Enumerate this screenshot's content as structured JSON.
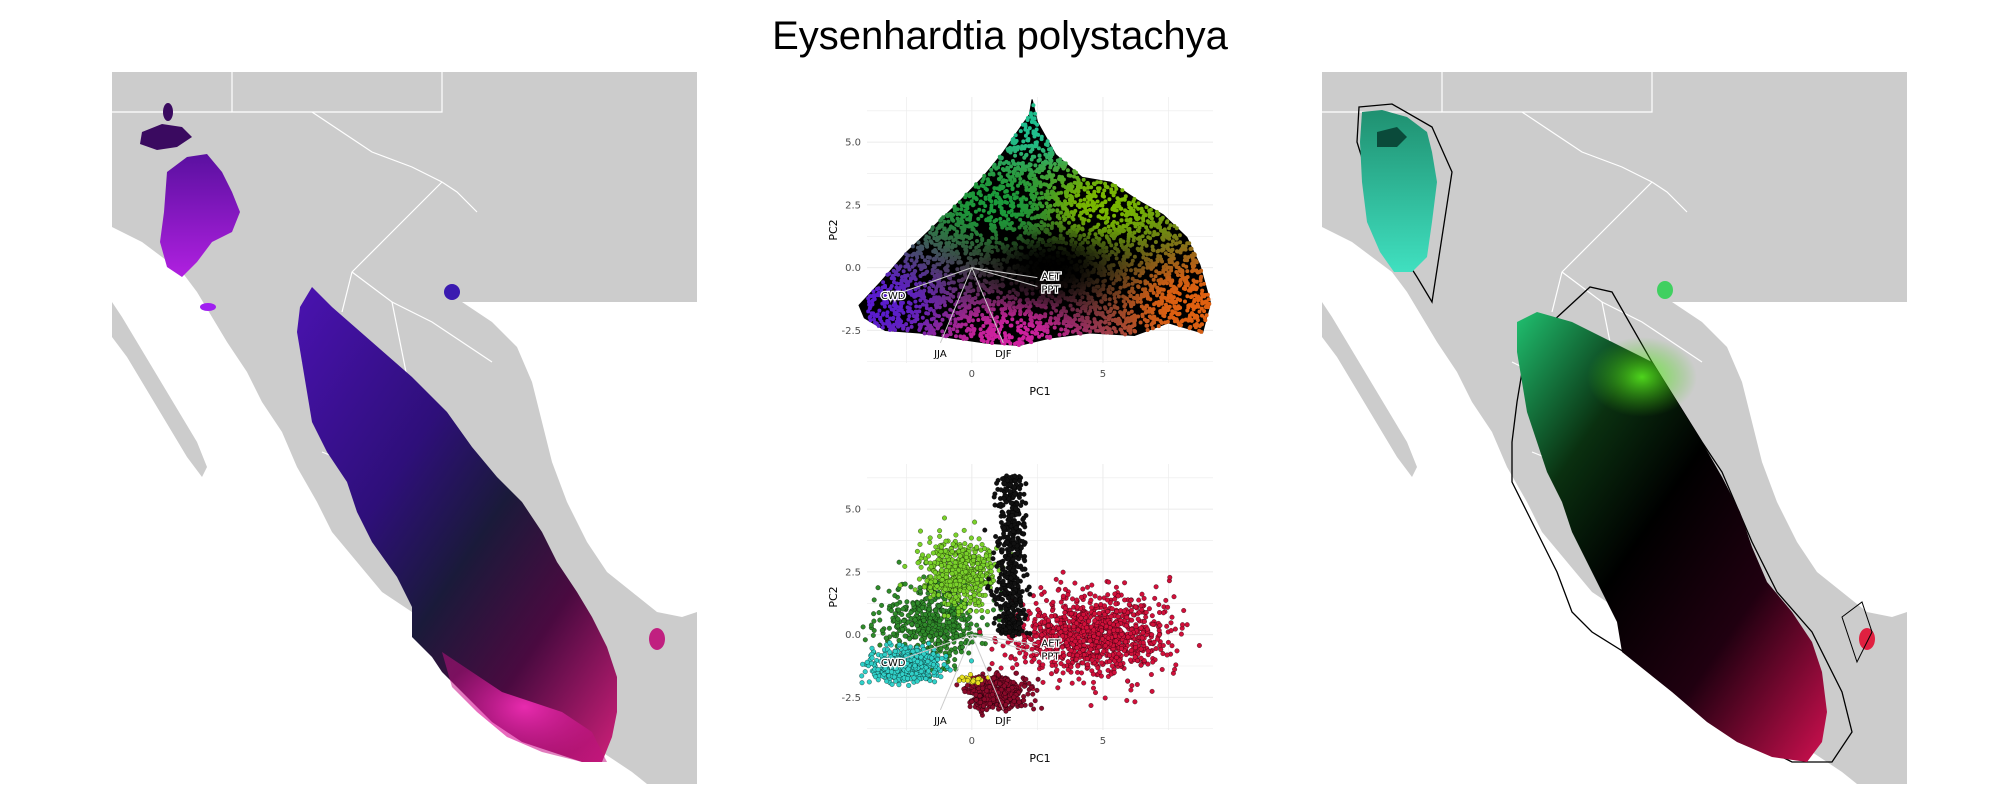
{
  "title": "Eysenhardtia polystachya",
  "colors": {
    "land": "#cccccc",
    "ocean": "#ffffff",
    "border": "#ffffff",
    "grid": "#ebebeb"
  },
  "panels": {
    "left_map": "map-geographic-colored-range",
    "right_map": "map-range-with-hull"
  },
  "chart_data": [
    {
      "type": "scatter",
      "panel": "top",
      "xlabel": "PC1",
      "ylabel": "PC2",
      "xlim": [
        -4,
        9.2
      ],
      "ylim": [
        -3.8,
        6.8
      ],
      "xticks": [
        0,
        5
      ],
      "yticks": [
        -2.5,
        0.0,
        2.5,
        5.0
      ],
      "ytick_labels": [
        "-2.5",
        "0.0",
        "2.5",
        "5.0"
      ],
      "grid": true,
      "point_cloud": {
        "outline": [
          [
            -4.3,
            -1.5
          ],
          [
            -3.5,
            -0.6
          ],
          [
            -2.5,
            0.6
          ],
          [
            -1.5,
            1.6
          ],
          [
            -0.5,
            2.6
          ],
          [
            0.5,
            3.7
          ],
          [
            1.2,
            4.6
          ],
          [
            1.8,
            5.5
          ],
          [
            2.2,
            6.1
          ],
          [
            2.3,
            6.7
          ],
          [
            2.5,
            5.8
          ],
          [
            3.2,
            4.5
          ],
          [
            4.2,
            3.6
          ],
          [
            5.3,
            3.4
          ],
          [
            6.3,
            2.7
          ],
          [
            7.3,
            2.1
          ],
          [
            8.2,
            1.2
          ],
          [
            8.7,
            0.1
          ],
          [
            9.1,
            -1.4
          ],
          [
            8.8,
            -2.6
          ],
          [
            7.5,
            -2.2
          ],
          [
            6.2,
            -2.7
          ],
          [
            4.5,
            -2.6
          ],
          [
            3.0,
            -2.8
          ],
          [
            1.8,
            -3.1
          ],
          [
            0.5,
            -3.0
          ],
          [
            -0.8,
            -2.8
          ],
          [
            -2.0,
            -2.6
          ],
          [
            -3.3,
            -2.5
          ],
          [
            -4.1,
            -2.0
          ]
        ],
        "color_stops": [
          {
            "x": -4.0,
            "y": -1.5,
            "color": "#5a1ccf"
          },
          {
            "x": 2.2,
            "y": 5.8,
            "color": "#1fbf8f"
          },
          {
            "x": 1.0,
            "y": 2.5,
            "color": "#1a9a3a"
          },
          {
            "x": 5.0,
            "y": 2.5,
            "color": "#7ab800"
          },
          {
            "x": 8.5,
            "y": -1.5,
            "color": "#e06010"
          },
          {
            "x": 1.5,
            "y": -2.9,
            "color": "#d020a0"
          },
          {
            "x": 3.0,
            "y": 0.0,
            "color": "#000000"
          }
        ]
      },
      "vectors": [
        {
          "label": "AET",
          "x": 2.5,
          "y": -0.4
        },
        {
          "label": "PPT",
          "x": 2.5,
          "y": -0.75
        },
        {
          "label": "CWD",
          "x": -3.0,
          "y": -1.1
        },
        {
          "label": "JJA",
          "x": -1.2,
          "y": -3.0
        },
        {
          "label": "DJF",
          "x": 1.2,
          "y": -3.0
        }
      ]
    },
    {
      "type": "scatter",
      "panel": "bottom",
      "xlabel": "PC1",
      "ylabel": "PC2",
      "xlim": [
        -4,
        9.2
      ],
      "ylim": [
        -3.8,
        6.8
      ],
      "xticks": [
        0,
        5
      ],
      "yticks": [
        -2.5,
        0.0,
        2.5,
        5.0
      ],
      "ytick_labels": [
        "-2.5",
        "0.0",
        "2.5",
        "5.0"
      ],
      "grid": true,
      "clusters": [
        {
          "center": [
            -1.5,
            0.5
          ],
          "spread": [
            1.8,
            1.4
          ],
          "color": "#2f8a2a"
        },
        {
          "center": [
            -0.5,
            2.5
          ],
          "spread": [
            1.2,
            1.2
          ],
          "color": "#7ad12a"
        },
        {
          "center": [
            -2.5,
            -1.2
          ],
          "spread": [
            1.2,
            0.6
          ],
          "color": "#30d0c8"
        },
        {
          "center": [
            1.5,
            2.5
          ],
          "spread": [
            0.6,
            2.0
          ],
          "color": "#111111"
        },
        {
          "center": [
            4.5,
            0.0
          ],
          "spread": [
            2.6,
            1.5
          ],
          "color": "#d0103a"
        },
        {
          "center": [
            1.0,
            -2.3
          ],
          "spread": [
            1.0,
            0.6
          ],
          "color": "#8a0a2a"
        },
        {
          "center": [
            0.0,
            -1.8
          ],
          "spread": [
            0.4,
            0.2
          ],
          "color": "#e8e020"
        }
      ],
      "vectors": [
        {
          "label": "AET",
          "x": 2.5,
          "y": -0.4
        },
        {
          "label": "PPT",
          "x": 2.5,
          "y": -0.75
        },
        {
          "label": "CWD",
          "x": -3.0,
          "y": -1.1
        },
        {
          "label": "JJA",
          "x": -1.2,
          "y": -3.0
        },
        {
          "label": "DJF",
          "x": 1.2,
          "y": -3.0
        }
      ]
    }
  ]
}
